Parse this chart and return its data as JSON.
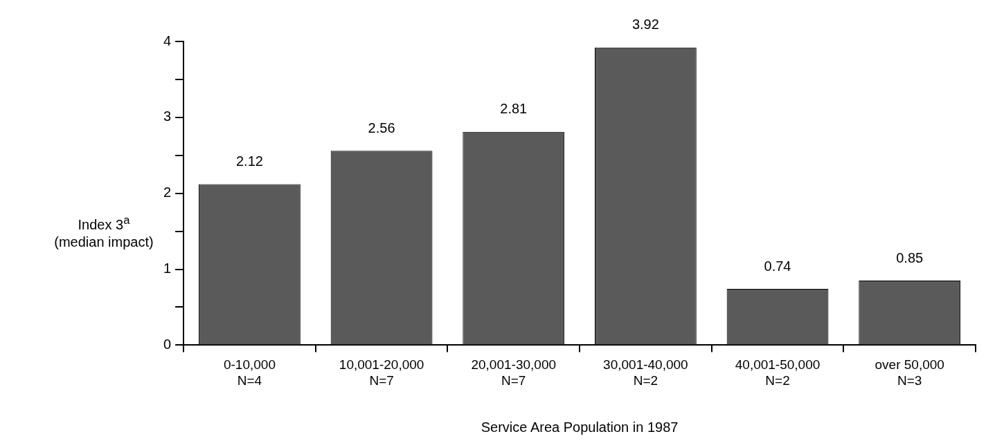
{
  "chart_data": {
    "type": "bar",
    "categories": [
      "0-10,000\nN=4",
      "10,001-20,000\nN=7",
      "20,001-30,000\nN=7",
      "30,001-40,000\nN=2",
      "40,001-50,000\nN=2",
      "over 50,000\nN=3"
    ],
    "values": [
      2.12,
      2.56,
      2.81,
      3.92,
      0.74,
      0.85
    ],
    "color": "#5a5a5a",
    "ylim": [
      0,
      4
    ],
    "yticks": [
      0,
      {
        "value": 0.5,
        "label": null
      },
      1,
      {
        "value": 1.5,
        "label": null
      },
      2,
      {
        "value": 2.5,
        "label": null
      },
      3,
      {
        "value": 3.5,
        "label": null
      },
      4
    ],
    "ylabel": "Index 3$^{a}$\n(median impact)",
    "xlabel": "Service Area Population in 1987",
    "data_labels": true,
    "grid": false,
    "legend": false
  }
}
